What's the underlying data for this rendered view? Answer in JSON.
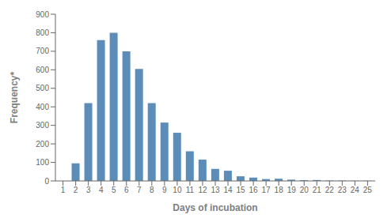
{
  "chart_data": {
    "type": "bar",
    "x": [
      1,
      2,
      3,
      4,
      5,
      6,
      7,
      8,
      9,
      10,
      11,
      12,
      13,
      14,
      15,
      16,
      17,
      18,
      19,
      20,
      21,
      22,
      23,
      24,
      25
    ],
    "values": [
      0,
      95,
      420,
      760,
      800,
      700,
      605,
      420,
      315,
      260,
      160,
      115,
      65,
      55,
      25,
      18,
      10,
      12,
      7,
      4,
      5,
      2,
      2,
      1,
      1
    ],
    "color": "#5b8db8",
    "xlabel": "Days of incubation",
    "ylabel": "Frequency*",
    "xlim": [
      0.4,
      25.6
    ],
    "xticks": [
      1,
      2,
      3,
      4,
      5,
      6,
      7,
      8,
      9,
      10,
      11,
      12,
      13,
      14,
      15,
      16,
      17,
      18,
      19,
      20,
      21,
      22,
      23,
      24,
      25
    ],
    "ylim": [
      0,
      900
    ],
    "yticks": [
      0,
      100,
      200,
      300,
      400,
      500,
      600,
      700,
      800,
      900
    ],
    "grid": false
  }
}
